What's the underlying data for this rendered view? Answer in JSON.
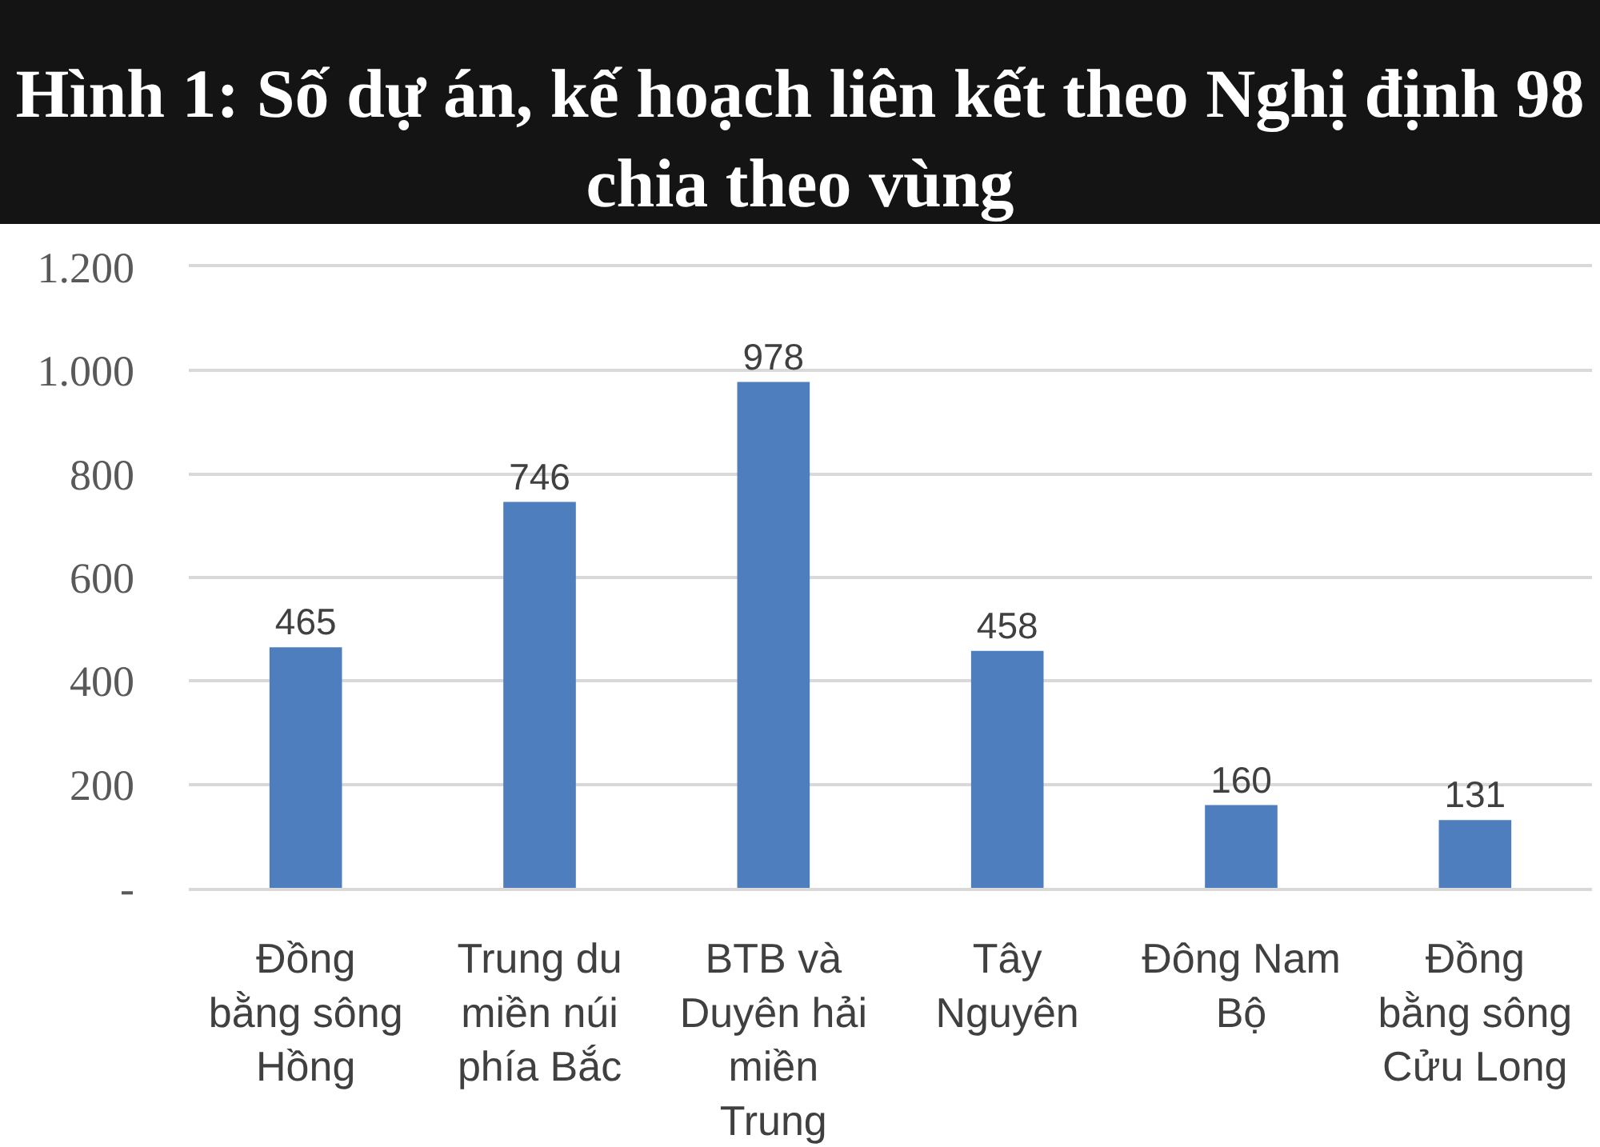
{
  "chart_data": {
    "type": "bar",
    "title": "Hình 1: Số dự án, kế hoạch liên kết theo Nghị định 98 chia theo vùng",
    "categories": [
      "Đồng\nbằng sông\nHồng",
      "Trung du\nmiền núi\nphía Bắc",
      "BTB và\nDuyên hải\nmiền\nTrung",
      "Tây\nNguyên",
      "Đông Nam\nBộ",
      "Đồng\nbằng sông\nCửu Long"
    ],
    "values": [
      465,
      746,
      978,
      458,
      160,
      131
    ],
    "color": "#4f7ebf",
    "ylim": [
      0,
      1200
    ],
    "yticks": [
      {
        "value": 0,
        "label": "-"
      },
      200,
      400,
      600,
      800,
      {
        "value": 1000,
        "label": "1.000"
      },
      {
        "value": 1200,
        "label": "1.200"
      }
    ],
    "grid": "y",
    "data_labels": true
  }
}
